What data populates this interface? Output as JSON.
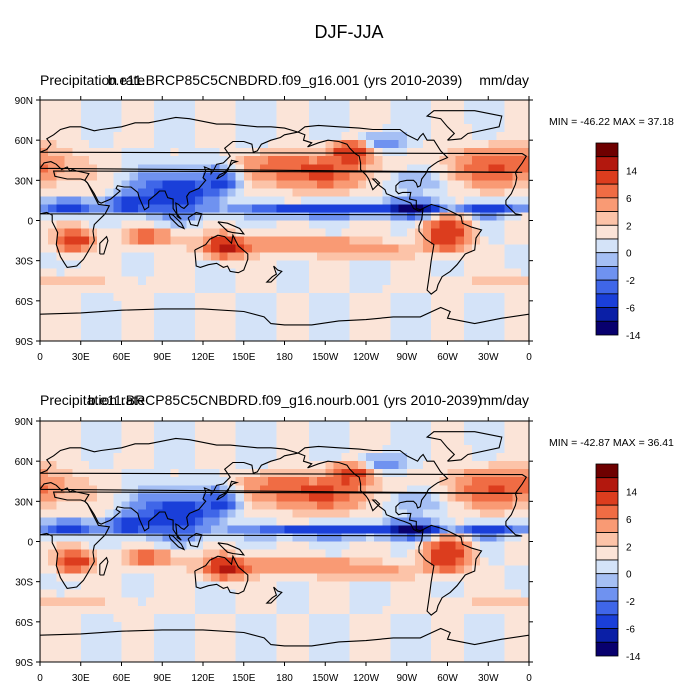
{
  "main_title": "DJF-JJA",
  "colors": {
    "levels": [
      "#08006e",
      "#0a1fa6",
      "#1a3fd9",
      "#3f66e8",
      "#6f92f0",
      "#a5bff4",
      "#d4e3f8",
      "#fbe4d8",
      "#fcc3a8",
      "#f99a74",
      "#f06c44",
      "#dc3d1e",
      "#b3180e",
      "#6e0000"
    ],
    "land_outline": "#000000"
  },
  "colorbar": {
    "labels": [
      "14",
      "6",
      "2",
      "0",
      "-2",
      "-6",
      "-14"
    ]
  },
  "chart_data": [
    {
      "type": "heatmap",
      "name": "top",
      "title_left": "Precipitation rate",
      "title_center": "b.e11.BRCP85C5CNBDRD.f09_g16.001 (yrs 2010-2039)",
      "title_right": "mm/day",
      "stats": "MIN = -46.22  MAX =  37.18",
      "xticks": [
        "0",
        "30E",
        "60E",
        "90E",
        "120E",
        "150E",
        "180",
        "150W",
        "120W",
        "90W",
        "60W",
        "30W",
        "0"
      ],
      "yticks": [
        "90N",
        "60N",
        "30N",
        "0",
        "30S",
        "60S",
        "90S"
      ],
      "xlim": [
        0,
        360
      ],
      "ylim": [
        -90,
        90
      ],
      "color_levels": [
        -20,
        -14,
        -10,
        -6,
        -4,
        -2,
        -1,
        0,
        1,
        2,
        4,
        6,
        10,
        14,
        20
      ],
      "pattern": [
        {
          "lon": 340,
          "lat": 40,
          "dlon": 40,
          "dlat": 14,
          "v": 6
        },
        {
          "lon": 205,
          "lat": 35,
          "dlon": 40,
          "dlat": 12,
          "v": 6
        },
        {
          "lon": 230,
          "lat": 52,
          "dlon": 14,
          "dlat": 8,
          "v": 10
        },
        {
          "lon": 175,
          "lat": 42,
          "dlon": 25,
          "dlat": 8,
          "v": 3
        },
        {
          "lon": 25,
          "lat": -15,
          "dlon": 12,
          "dlat": 8,
          "v": 10
        },
        {
          "lon": 135,
          "lat": -20,
          "dlon": 12,
          "dlat": 8,
          "v": 10
        },
        {
          "lon": 300,
          "lat": -10,
          "dlon": 15,
          "dlat": 12,
          "v": 10
        },
        {
          "lon": 175,
          "lat": -18,
          "dlon": 50,
          "dlat": 6,
          "v": 5
        },
        {
          "lon": 80,
          "lat": -12,
          "dlon": 18,
          "dlat": 5,
          "v": 6
        },
        {
          "lon": 240,
          "lat": -22,
          "dlon": 35,
          "dlat": 6,
          "v": 3
        },
        {
          "lon": 210,
          "lat": 8,
          "dlon": 55,
          "dlat": 4,
          "v": -10
        },
        {
          "lon": 275,
          "lat": 9,
          "dlon": 18,
          "dlat": 5,
          "v": -14
        },
        {
          "lon": 100,
          "lat": 20,
          "dlon": 25,
          "dlat": 14,
          "v": -10
        },
        {
          "lon": 135,
          "lat": 30,
          "dlon": 12,
          "dlat": 8,
          "v": -6
        },
        {
          "lon": 65,
          "lat": 12,
          "dlon": 15,
          "dlat": 6,
          "v": -8
        },
        {
          "lon": 20,
          "lat": 10,
          "dlon": 18,
          "dlat": 5,
          "v": -8
        },
        {
          "lon": 330,
          "lat": 8,
          "dlon": 20,
          "dlat": 4,
          "v": -8
        },
        {
          "lon": 245,
          "lat": 58,
          "dlon": 20,
          "dlat": 7,
          "v": -4
        },
        {
          "lon": 275,
          "lat": 30,
          "dlon": 20,
          "dlat": 10,
          "v": -3
        },
        {
          "lon": 0,
          "lat": -45,
          "dlon": 60,
          "dlat": 6,
          "v": 1.5
        }
      ]
    },
    {
      "type": "heatmap",
      "name": "bottom",
      "title_left": "Precipitation rate",
      "title_center": "b.e11.BRCP85C5CNBDRD.f09_g16.nourb.001 (yrs 2010-2039)",
      "title_right": "mm/day",
      "stats": "MIN = -42.87  MAX =  36.41",
      "xticks": [
        "0",
        "30E",
        "60E",
        "90E",
        "120E",
        "150E",
        "180",
        "150W",
        "120W",
        "90W",
        "60W",
        "30W",
        "0"
      ],
      "yticks": [
        "90N",
        "60N",
        "30N",
        "0",
        "30S",
        "60S",
        "90S"
      ],
      "xlim": [
        0,
        360
      ],
      "ylim": [
        -90,
        90
      ],
      "color_levels": [
        -20,
        -14,
        -10,
        -6,
        -4,
        -2,
        -1,
        0,
        1,
        2,
        4,
        6,
        10,
        14,
        20
      ],
      "pattern": [
        {
          "lon": 340,
          "lat": 40,
          "dlon": 40,
          "dlat": 14,
          "v": 6
        },
        {
          "lon": 205,
          "lat": 35,
          "dlon": 40,
          "dlat": 12,
          "v": 6
        },
        {
          "lon": 230,
          "lat": 52,
          "dlon": 14,
          "dlat": 8,
          "v": 9
        },
        {
          "lon": 175,
          "lat": 42,
          "dlon": 25,
          "dlat": 8,
          "v": 3
        },
        {
          "lon": 25,
          "lat": -15,
          "dlon": 12,
          "dlat": 8,
          "v": 10
        },
        {
          "lon": 135,
          "lat": -20,
          "dlon": 12,
          "dlat": 8,
          "v": 10
        },
        {
          "lon": 300,
          "lat": -10,
          "dlon": 15,
          "dlat": 12,
          "v": 10
        },
        {
          "lon": 175,
          "lat": -18,
          "dlon": 50,
          "dlat": 6,
          "v": 5
        },
        {
          "lon": 80,
          "lat": -12,
          "dlon": 18,
          "dlat": 5,
          "v": 6
        },
        {
          "lon": 240,
          "lat": -22,
          "dlon": 35,
          "dlat": 6,
          "v": 3
        },
        {
          "lon": 210,
          "lat": 8,
          "dlon": 55,
          "dlat": 4,
          "v": -9
        },
        {
          "lon": 275,
          "lat": 9,
          "dlon": 18,
          "dlat": 5,
          "v": -14
        },
        {
          "lon": 100,
          "lat": 20,
          "dlon": 25,
          "dlat": 14,
          "v": -10
        },
        {
          "lon": 135,
          "lat": 30,
          "dlon": 12,
          "dlat": 8,
          "v": -6
        },
        {
          "lon": 65,
          "lat": 12,
          "dlon": 15,
          "dlat": 6,
          "v": -8
        },
        {
          "lon": 20,
          "lat": 10,
          "dlon": 18,
          "dlat": 5,
          "v": -8
        },
        {
          "lon": 330,
          "lat": 8,
          "dlon": 20,
          "dlat": 4,
          "v": -8
        },
        {
          "lon": 245,
          "lat": 58,
          "dlon": 20,
          "dlat": 7,
          "v": -4
        },
        {
          "lon": 275,
          "lat": 30,
          "dlon": 20,
          "dlat": 10,
          "v": -3
        },
        {
          "lon": 0,
          "lat": -45,
          "dlon": 60,
          "dlat": 6,
          "v": 1.5
        }
      ]
    }
  ]
}
